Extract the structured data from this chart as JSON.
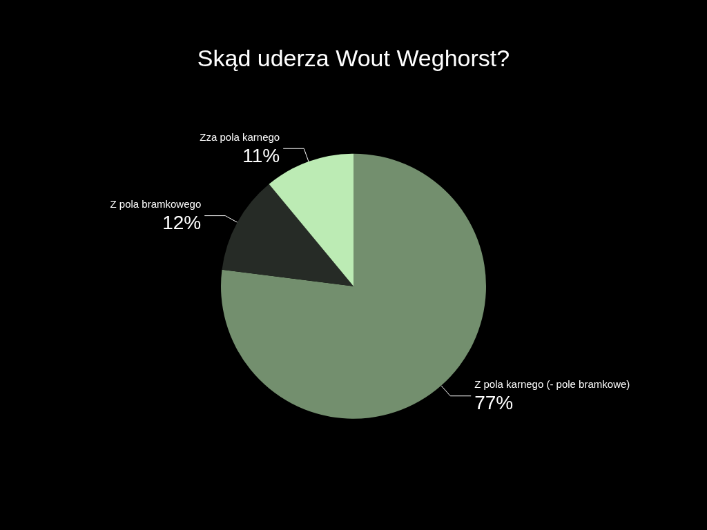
{
  "chart_data": {
    "type": "pie",
    "title": "Skąd uderza Wout Weghorst?",
    "categories": [
      "Z pola karnego (- pole bramkowe)",
      "Z pola bramkowego",
      "Zza pola karnego"
    ],
    "values": [
      77,
      12,
      11
    ],
    "value_labels": [
      "77%",
      "12%",
      "11%"
    ],
    "colors": [
      "#738f6e",
      "#262b26",
      "#bcebb4"
    ],
    "legend": false
  }
}
